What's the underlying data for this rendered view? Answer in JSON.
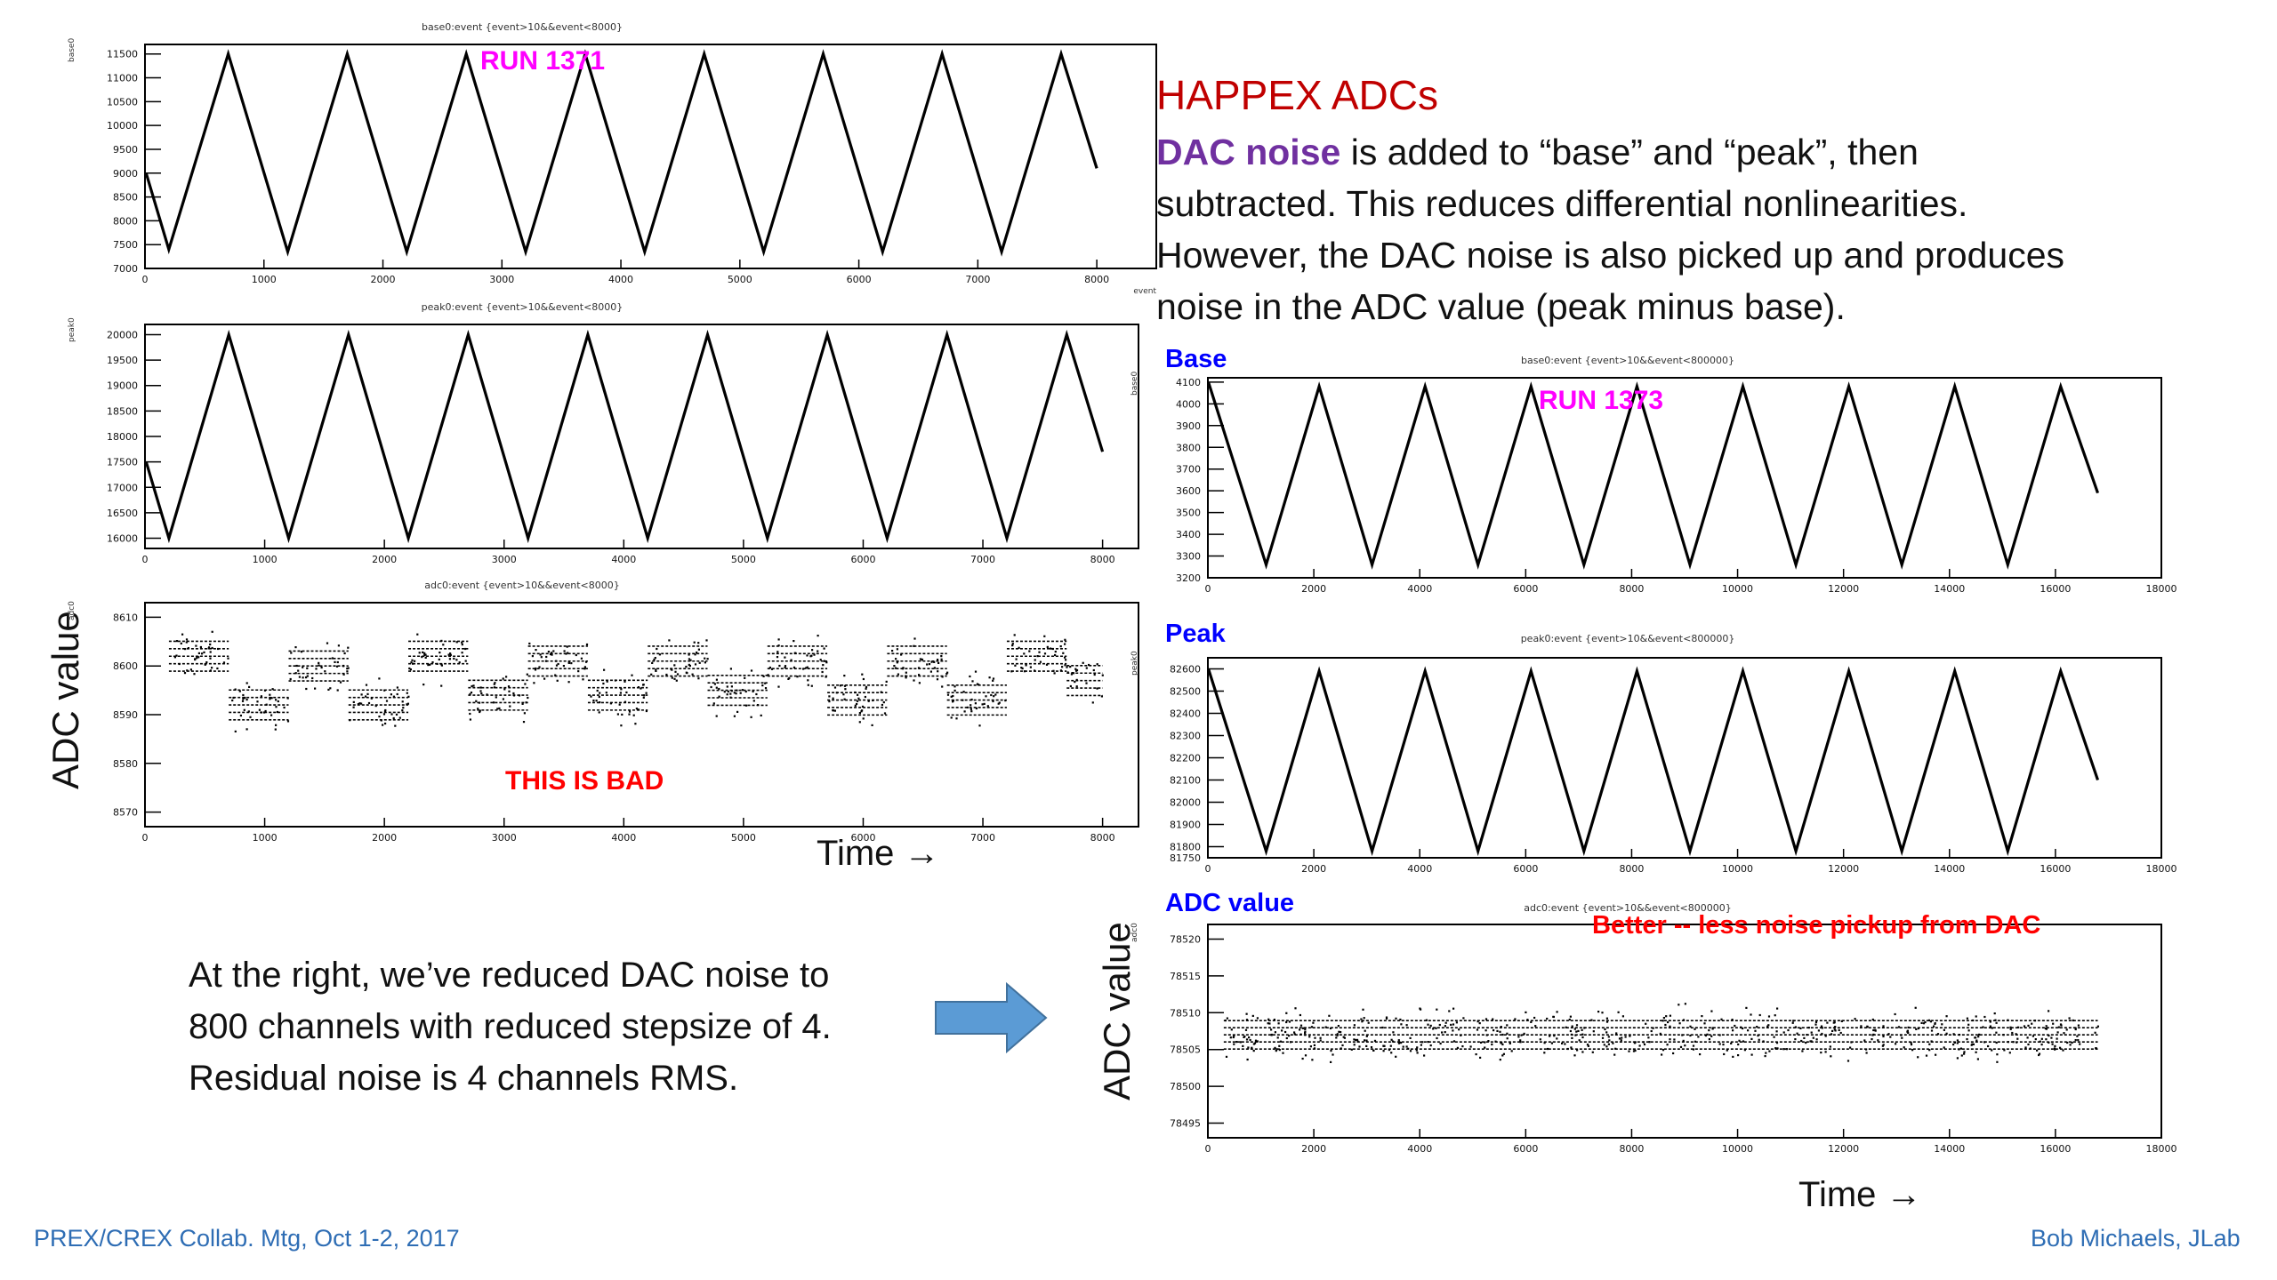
{
  "slide": {
    "title": "HAPPEX  ADCs",
    "body": {
      "highlight": "DAC noise",
      "line1_rest": " is added to “base” and “peak”, then",
      "line2": "subtracted.   This reduces differential nonlinearities.",
      "line3": "However, the DAC noise is also picked up and produces",
      "line4": "noise in the ADC value  (peak minus base)."
    },
    "note": {
      "line1": "At the right, we’ve reduced DAC noise to",
      "line2": "800 channels with reduced stepsize of 4.",
      "line3": "Residual noise is 4 channels RMS."
    },
    "footer_left": "PREX/CREX  Collab. Mtg,  Oct 1-2, 2017",
    "footer_right": "Bob Michaels,  JLab",
    "time_label_left": "Time  →",
    "time_label_right": "Time  →",
    "adc_axis_left": "ADC  value",
    "adc_axis_right": "ADC  value"
  },
  "chart_data": [
    {
      "type": "line",
      "title": "base0:event {event>10&&event<8000}",
      "ylabel": "base0",
      "xlabel": "event",
      "annotation": "RUN 1371",
      "annotation_color": "#ff00ff",
      "xlim": [
        0,
        8500
      ],
      "ylim": [
        7000,
        11700
      ],
      "xticks": [
        0,
        1000,
        2000,
        3000,
        4000,
        5000,
        6000,
        7000,
        8000
      ],
      "yticks": [
        7000,
        7500,
        8000,
        8500,
        9000,
        9500,
        10000,
        10500,
        11000,
        11500
      ],
      "series": [
        {
          "x": [
            10,
            200,
            700,
            1200,
            1700,
            2200,
            2700,
            3200,
            3700,
            4200,
            4700,
            5200,
            5700,
            6200,
            6700,
            7200,
            7700,
            8000
          ],
          "y": [
            9000,
            7400,
            11500,
            7350,
            11500,
            7350,
            11500,
            7350,
            11500,
            7350,
            11500,
            7350,
            11500,
            7350,
            11500,
            7350,
            11500,
            9100
          ]
        }
      ]
    },
    {
      "type": "line",
      "title": "peak0:event {event>10&&event<8000}",
      "ylabel": "peak0",
      "xlabel": "",
      "xlim": [
        0,
        8300
      ],
      "ylim": [
        15800,
        20200
      ],
      "xticks": [
        0,
        1000,
        2000,
        3000,
        4000,
        5000,
        6000,
        7000,
        8000
      ],
      "yticks": [
        16000,
        16500,
        17000,
        17500,
        18000,
        18500,
        19000,
        19500,
        20000
      ],
      "series": [
        {
          "x": [
            10,
            200,
            700,
            1200,
            1700,
            2200,
            2700,
            3200,
            3700,
            4200,
            4700,
            5200,
            5700,
            6200,
            6700,
            7200,
            7700,
            8000
          ],
          "y": [
            17500,
            16000,
            20000,
            16000,
            20000,
            16000,
            20000,
            16000,
            20000,
            16000,
            20000,
            16000,
            20000,
            16000,
            20000,
            16000,
            20000,
            17700
          ]
        }
      ]
    },
    {
      "type": "scatter",
      "title": "adc0:event {event>10&&event<8000}",
      "ylabel": "adc0",
      "xlabel": "",
      "annotation": "THIS IS  BAD",
      "annotation_color": "#ff0000",
      "xlim": [
        0,
        8300
      ],
      "ylim": [
        8567,
        8613
      ],
      "xticks": [
        0,
        1000,
        2000,
        3000,
        4000,
        5000,
        6000,
        7000,
        8000
      ],
      "yticks": [
        8570,
        8580,
        8590,
        8600,
        8610
      ],
      "bands": [
        {
          "x0": 200,
          "x1": 700,
          "y": 8602
        },
        {
          "x0": 700,
          "x1": 1200,
          "y": 8592
        },
        {
          "x0": 1200,
          "x1": 1700,
          "y": 8600
        },
        {
          "x0": 1700,
          "x1": 2200,
          "y": 8592
        },
        {
          "x0": 2200,
          "x1": 2700,
          "y": 8602
        },
        {
          "x0": 2700,
          "x1": 3200,
          "y": 8594
        },
        {
          "x0": 3200,
          "x1": 3700,
          "y": 8601
        },
        {
          "x0": 3700,
          "x1": 4200,
          "y": 8594
        },
        {
          "x0": 4200,
          "x1": 4700,
          "y": 8601
        },
        {
          "x0": 4700,
          "x1": 5200,
          "y": 8595
        },
        {
          "x0": 5200,
          "x1": 5700,
          "y": 8601
        },
        {
          "x0": 5700,
          "x1": 6200,
          "y": 8593
        },
        {
          "x0": 6200,
          "x1": 6700,
          "y": 8601
        },
        {
          "x0": 6700,
          "x1": 7200,
          "y": 8593
        },
        {
          "x0": 7200,
          "x1": 7700,
          "y": 8602
        },
        {
          "x0": 7700,
          "x1": 8000,
          "y": 8597
        }
      ],
      "spread": 7
    },
    {
      "type": "line",
      "title": "base0:event {event>10&&event<800000}",
      "ylabel": "base0",
      "xlabel": "",
      "panel_label": "Base",
      "panel_label_color": "#0000ff",
      "annotation": "RUN 1373",
      "annotation_color": "#ff00ff",
      "xlim": [
        0,
        18000
      ],
      "ylim": [
        3200,
        4120
      ],
      "xticks": [
        0,
        2000,
        4000,
        6000,
        8000,
        10000,
        12000,
        14000,
        16000,
        18000
      ],
      "yticks": [
        3200,
        3300,
        3400,
        3500,
        3600,
        3700,
        3800,
        3900,
        4000,
        4100
      ],
      "series": [
        {
          "x": [
            10,
            1100,
            2100,
            3100,
            4100,
            5100,
            6100,
            7100,
            8100,
            9100,
            10100,
            11100,
            12100,
            13100,
            14100,
            15100,
            16100,
            16800
          ],
          "y": [
            4100,
            3260,
            4080,
            3260,
            4080,
            3260,
            4080,
            3260,
            4080,
            3260,
            4080,
            3260,
            4080,
            3260,
            4080,
            3260,
            4080,
            3590
          ]
        }
      ]
    },
    {
      "type": "line",
      "title": "peak0:event {event>10&&event<800000}",
      "ylabel": "peak0",
      "xlabel": "",
      "panel_label": "Peak",
      "panel_label_color": "#0000ff",
      "xlim": [
        0,
        18000
      ],
      "ylim": [
        81750,
        82650
      ],
      "xticks": [
        0,
        2000,
        4000,
        6000,
        8000,
        10000,
        12000,
        14000,
        16000,
        18000
      ],
      "yticks": [
        81750,
        81800,
        81900,
        82000,
        82100,
        82200,
        82300,
        82400,
        82500,
        82600
      ],
      "series": [
        {
          "x": [
            10,
            1100,
            2100,
            3100,
            4100,
            5100,
            6100,
            7100,
            8100,
            9100,
            10100,
            11100,
            12100,
            13100,
            14100,
            15100,
            16100,
            16800
          ],
          "y": [
            82600,
            81780,
            82590,
            81780,
            82590,
            81780,
            82590,
            81780,
            82590,
            81780,
            82590,
            81780,
            82590,
            81780,
            82590,
            81780,
            82590,
            82100
          ]
        }
      ]
    },
    {
      "type": "scatter",
      "title": "adc0:event {event>10&&event<800000}",
      "ylabel": "adc0",
      "xlabel": "",
      "panel_label": "ADC value",
      "panel_label_color": "#0000ff",
      "annotation": "Better -- less noise pickup from DAC",
      "annotation_color": "#ff0000",
      "xlim": [
        0,
        18000
      ],
      "ylim": [
        78493,
        78522
      ],
      "xticks": [
        0,
        2000,
        4000,
        6000,
        8000,
        10000,
        12000,
        14000,
        16000,
        18000
      ],
      "yticks": [
        78495,
        78500,
        78505,
        78510,
        78515,
        78520
      ],
      "bands": [
        {
          "x0": 300,
          "x1": 16800,
          "y": 78507
        }
      ],
      "spread": 5
    }
  ]
}
